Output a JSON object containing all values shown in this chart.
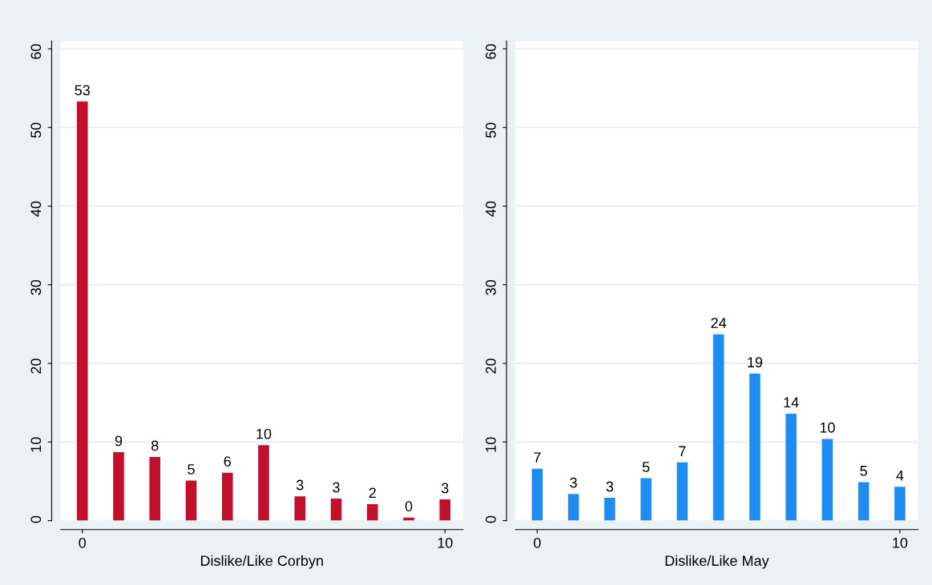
{
  "chart_data": [
    {
      "type": "bar",
      "xlabel": "Dislike/Like Corbyn",
      "x": [
        0,
        1,
        2,
        3,
        4,
        5,
        6,
        7,
        8,
        9,
        10
      ],
      "values": [
        53.3,
        8.7,
        8.1,
        5.1,
        6.1,
        9.6,
        3.1,
        2.8,
        2.1,
        0.4,
        2.7
      ],
      "value_labels": [
        "53",
        "9",
        "8",
        "5",
        "6",
        "10",
        "3",
        "3",
        "2",
        "0",
        "3"
      ],
      "color": "#c1102c",
      "xlim": [
        -0.6,
        10.5
      ],
      "xticks": [
        0,
        10
      ],
      "ylim": [
        0,
        61
      ],
      "yticks": [
        0,
        10,
        20,
        30,
        40,
        50,
        60
      ],
      "grid": "y"
    },
    {
      "type": "bar",
      "xlabel": "Dislike/Like May",
      "x": [
        0,
        1,
        2,
        3,
        4,
        5,
        6,
        7,
        8,
        9,
        10
      ],
      "values": [
        6.6,
        3.4,
        2.9,
        5.4,
        7.4,
        23.7,
        18.7,
        13.6,
        10.4,
        4.9,
        4.3
      ],
      "value_labels": [
        "7",
        "3",
        "3",
        "5",
        "7",
        "24",
        "19",
        "14",
        "10",
        "5",
        "4"
      ],
      "color": "#1e8cf0",
      "xlim": [
        -0.6,
        10.5
      ],
      "xticks": [
        0,
        10
      ],
      "ylim": [
        0,
        61
      ],
      "yticks": [
        0,
        10,
        20,
        30,
        40,
        50,
        60
      ],
      "grid": "y"
    }
  ]
}
